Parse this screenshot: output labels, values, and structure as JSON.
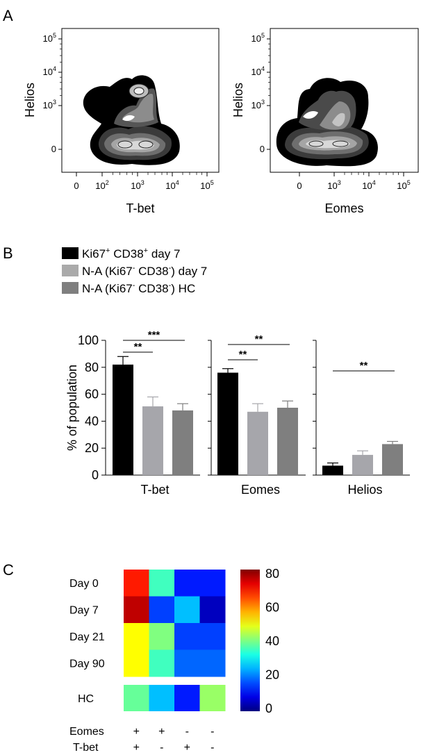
{
  "panels": {
    "a": {
      "letter": "A",
      "plots": [
        {
          "xlabel": "T-bet",
          "ylabel": "Helios",
          "x_ticks": [
            "0",
            "10",
            "10",
            "10",
            "10"
          ],
          "x_exp": [
            "",
            "2",
            "3",
            "4",
            "5"
          ],
          "y_ticks": [
            "0",
            "10",
            "10",
            "10"
          ],
          "y_exp": [
            "",
            "3",
            "4",
            "5"
          ]
        },
        {
          "xlabel": "Eomes",
          "ylabel": "Helios",
          "x_ticks": [
            "0",
            "10",
            "10",
            "10"
          ],
          "x_exp": [
            "",
            "3",
            "4",
            "5"
          ],
          "y_ticks": [
            "0",
            "10",
            "10",
            "10"
          ],
          "y_exp": [
            "",
            "3",
            "4",
            "5"
          ]
        }
      ]
    },
    "b": {
      "letter": "B",
      "legend": [
        {
          "label_main": "Ki67",
          "sup1": "+",
          "mid": " CD38",
          "sup2": "+",
          "tail": " day 7",
          "color": "#000000"
        },
        {
          "label_main": "N-A (Ki67",
          "sup1": "-",
          "mid": " CD38",
          "sup2": "-",
          "tail": ") day 7",
          "color": "#aaaaaa"
        },
        {
          "label_main": "N-A (Ki67",
          "sup1": "-",
          "mid": " CD38",
          "sup2": "-",
          "tail": ") HC",
          "color": "#7f7f7f"
        }
      ]
    },
    "c": {
      "letter": "C"
    }
  },
  "chart_data": [
    {
      "type": "bar",
      "ylabel": "% of population",
      "ylim": [
        0,
        100
      ],
      "y_ticks": [
        0,
        20,
        40,
        60,
        80,
        100
      ],
      "categories": [
        "T-bet",
        "Eomes",
        "Helios"
      ],
      "series": [
        {
          "values": [
            82,
            76,
            7
          ],
          "errors": [
            6,
            3,
            2
          ],
          "color": "#000000"
        },
        {
          "values": [
            51,
            47,
            15
          ],
          "errors": [
            7,
            6,
            3
          ],
          "color": "#a6a6ab"
        },
        {
          "values": [
            48,
            50,
            23
          ],
          "errors": [
            5,
            5,
            2
          ],
          "color": "#7f7f7f"
        }
      ],
      "significance": [
        {
          "group": 0,
          "from": 0,
          "to": 1,
          "label": "**"
        },
        {
          "group": 0,
          "from": 0,
          "to": 2,
          "label": "***"
        },
        {
          "group": 1,
          "from": 0,
          "to": 1,
          "label": "**"
        },
        {
          "group": 1,
          "from": 0,
          "to": 2,
          "label": "**"
        },
        {
          "group": 2,
          "from": 0,
          "to": 2,
          "label": "**"
        }
      ]
    },
    {
      "type": "heatmap",
      "rows": [
        "Day 0",
        "Day 7",
        "Day 21",
        "Day 90"
      ],
      "extra_row": "HC",
      "values": [
        [
          68,
          35,
          12,
          12
        ],
        [
          75,
          15,
          25,
          5
        ],
        [
          50,
          40,
          15,
          15
        ],
        [
          50,
          35,
          18,
          18
        ]
      ],
      "extra_values": [
        38,
        25,
        12,
        42
      ],
      "column_labels": {
        "Eomes": [
          "+",
          "+",
          "-",
          "-"
        ],
        "T-bet": [
          "+",
          "-",
          "+",
          "-"
        ]
      },
      "colorbar": {
        "min": 0,
        "max": 80,
        "ticks": [
          0,
          20,
          40,
          60,
          80
        ]
      }
    }
  ]
}
